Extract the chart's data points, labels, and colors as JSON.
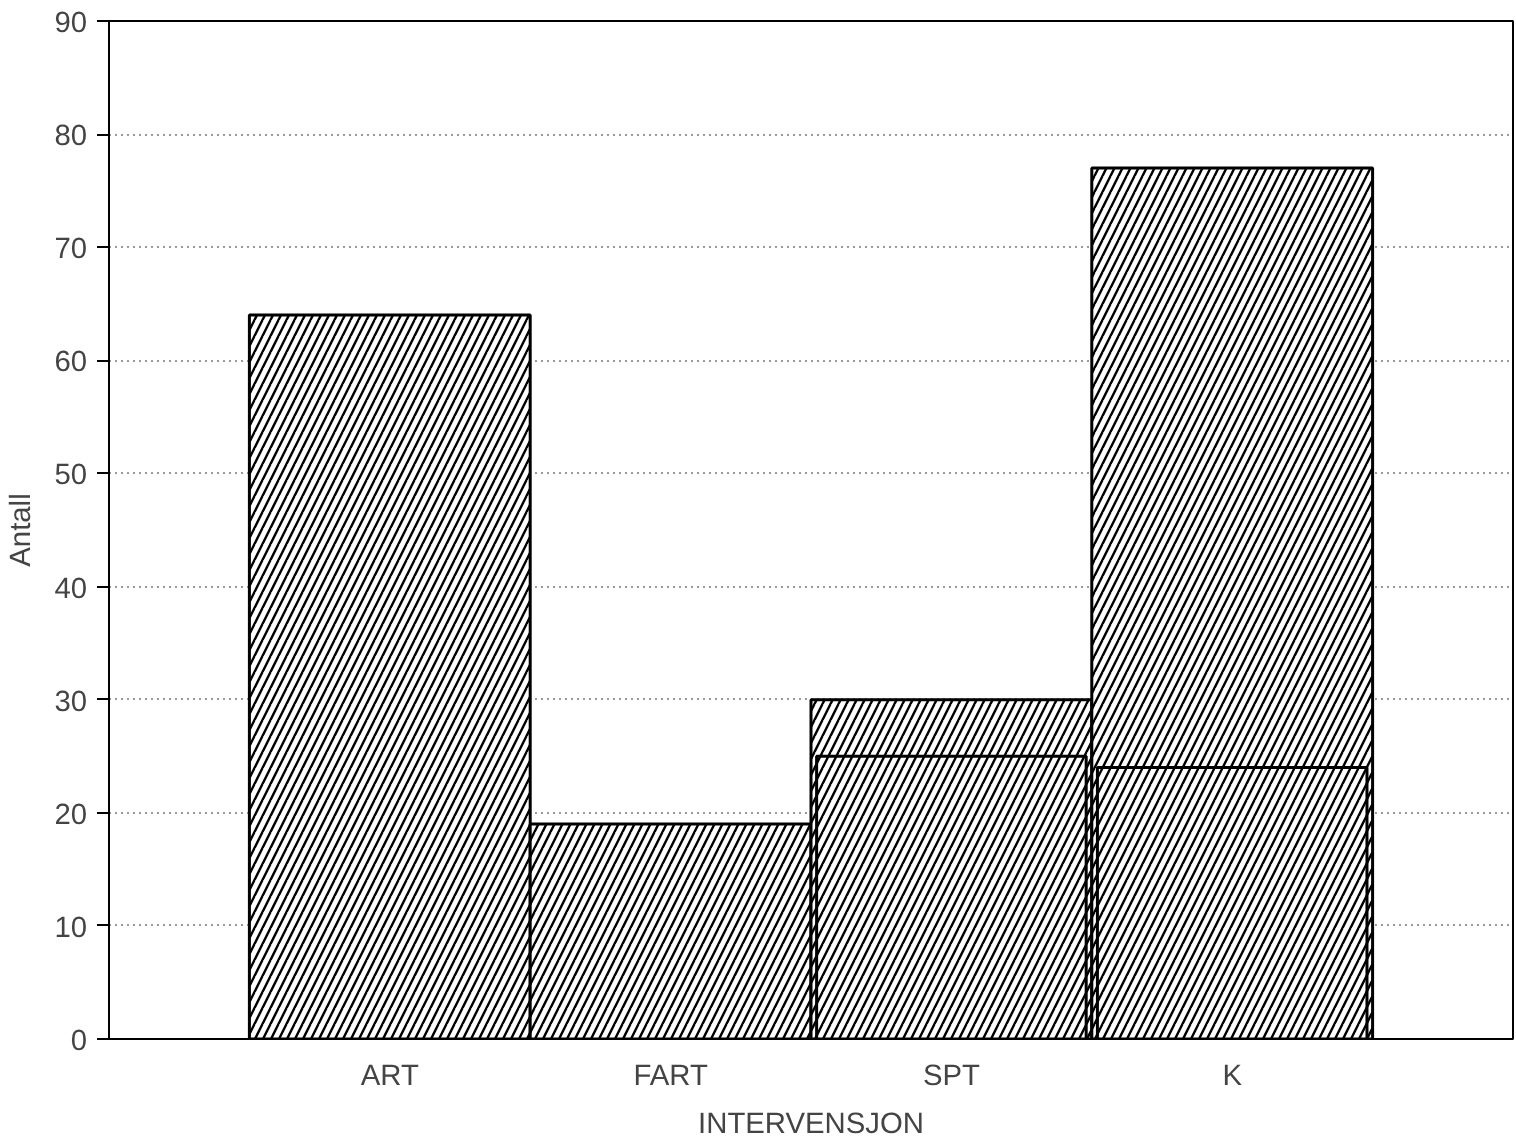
{
  "chart_data": {
    "type": "bar",
    "xlabel": "INTERVENSJON",
    "ylabel": "Antall",
    "categories": [
      "ART",
      "FART",
      "SPT",
      "K"
    ],
    "series": [
      {
        "color": "#000000",
        "values": [
          64,
          19,
          30,
          77
        ]
      },
      {
        "color": "#000000",
        "values": [
          null,
          null,
          25,
          24
        ]
      }
    ],
    "ylim": [
      0,
      90
    ],
    "yticks": [
      0,
      10,
      20,
      30,
      40,
      50,
      60,
      70,
      80,
      90
    ],
    "grid": "y"
  }
}
